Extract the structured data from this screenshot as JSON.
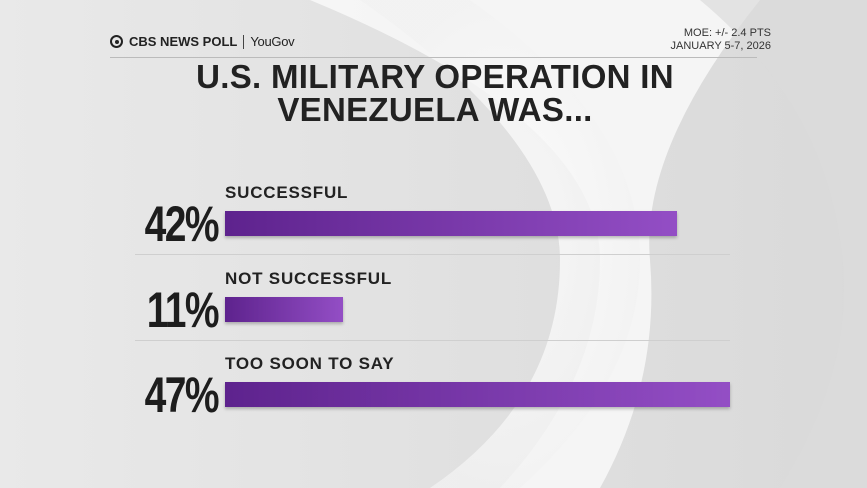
{
  "brand": {
    "network": "CBS NEWS POLL",
    "partner": "YouGov"
  },
  "meta": {
    "moe": "MOE: +/- 2.4 PTS",
    "dates": "JANUARY 5-7, 2026"
  },
  "chart_data": {
    "type": "bar",
    "orientation": "horizontal",
    "title": "U.S. MILITARY OPERATION IN VENEZUELA WAS...",
    "categories": [
      "SUCCESSFUL",
      "NOT SUCCESSFUL",
      "TOO SOON TO SAY"
    ],
    "values": [
      42,
      11,
      47
    ],
    "value_labels": [
      "42%",
      "11%",
      "47%"
    ],
    "color": "#8a3fc0"
  }
}
